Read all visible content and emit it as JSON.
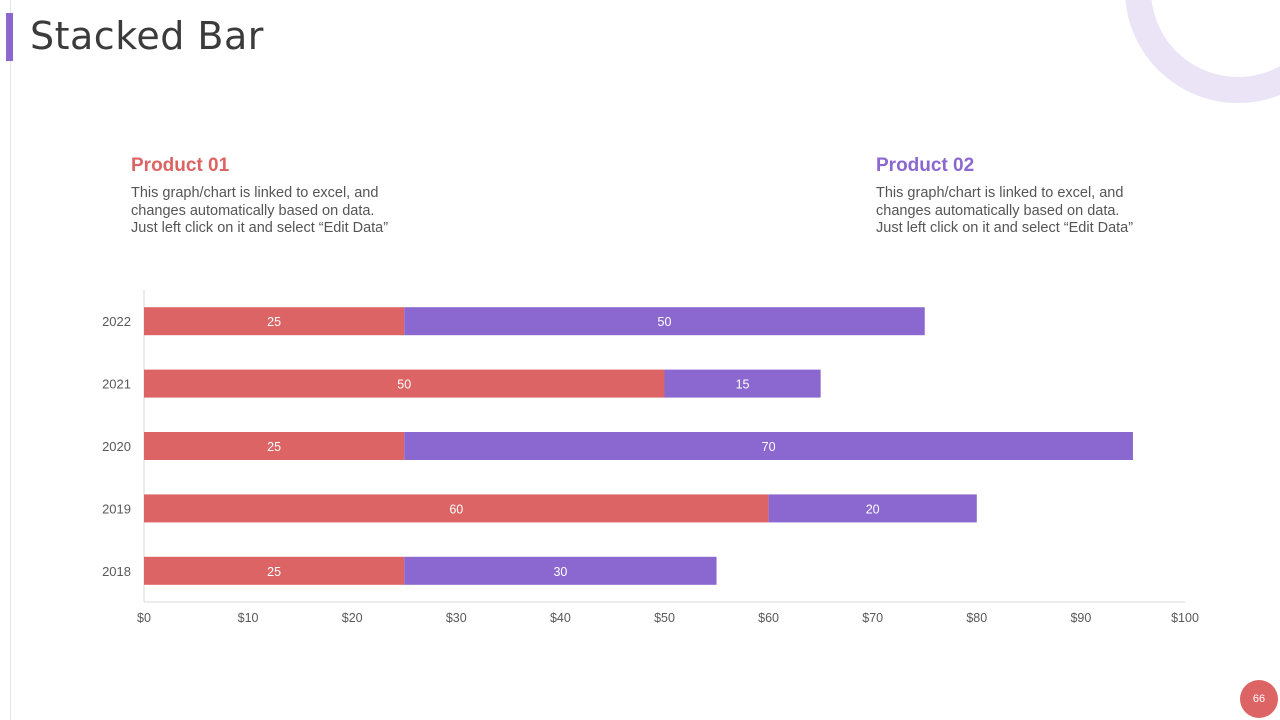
{
  "page": {
    "title": "Stacked Bar",
    "page_number": "66"
  },
  "colors": {
    "accent": "#8b68d0",
    "product01": "#dc6464",
    "product02": "#8b68d0",
    "ring": "#ebe3f6"
  },
  "products": [
    {
      "name": "Product 01",
      "lines": [
        "This graph/chart is linked to excel, and",
        "changes automatically based on data.",
        "Just left click on it and select “Edit Data”"
      ]
    },
    {
      "name": "Product 02",
      "lines": [
        "This graph/chart is linked to excel, and",
        "changes automatically based on data.",
        "Just left click on it and select “Edit Data”"
      ]
    }
  ],
  "chart_data": {
    "type": "bar",
    "orientation": "horizontal",
    "stacked": true,
    "categories": [
      "2022",
      "2021",
      "2020",
      "2019",
      "2018"
    ],
    "series": [
      {
        "name": "Product 01",
        "values": [
          25,
          50,
          25,
          60,
          25
        ]
      },
      {
        "name": "Product 02",
        "values": [
          50,
          15,
          70,
          20,
          30
        ]
      }
    ],
    "xlim": [
      0,
      100
    ],
    "xticks": [
      0,
      10,
      20,
      30,
      40,
      50,
      60,
      70,
      80,
      90,
      100
    ],
    "tick_prefix": "$",
    "title": "",
    "xlabel": "",
    "ylabel": "",
    "grid": false,
    "data_labels": true
  }
}
